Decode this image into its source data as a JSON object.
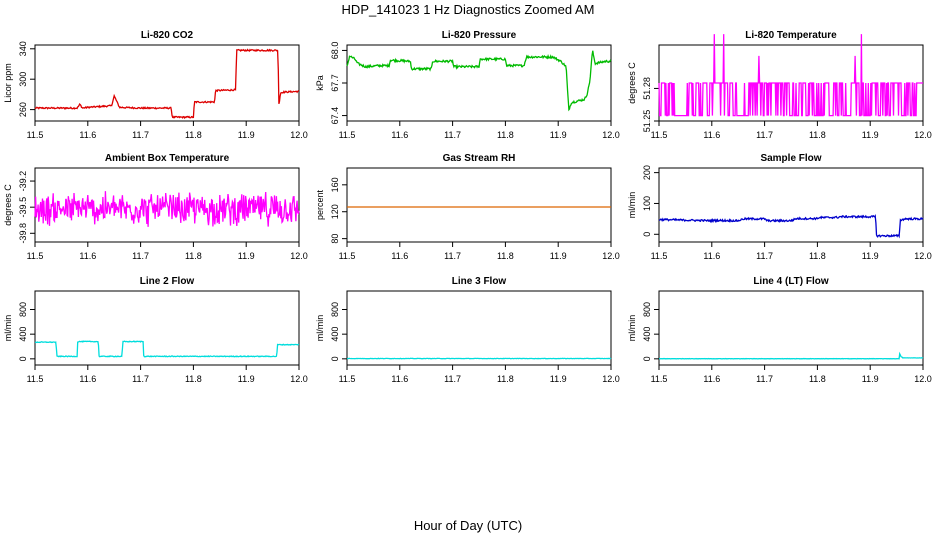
{
  "title": "HDP_141023  1 Hz Diagnostics Zoomed AM",
  "footer_xlabel": "Hour of Day (UTC)",
  "chart_data": [
    {
      "type": "line",
      "title": "Li-820 CO2",
      "ylabel": "Licor ppm",
      "xlim": [
        11.5,
        12.0
      ],
      "ylim": [
        245,
        345
      ],
      "xticks": [
        11.5,
        11.6,
        11.7,
        11.8,
        11.9,
        12.0
      ],
      "yticks": [
        260,
        300,
        340
      ],
      "ytick_labels": [
        "260",
        "300",
        "340"
      ],
      "color": "#dd0000",
      "series": [
        {
          "x": [
            11.5,
            11.58,
            11.585,
            11.59,
            11.6,
            11.645,
            11.65,
            11.66,
            11.7,
            11.758,
            11.76,
            11.8,
            11.802,
            11.84,
            11.842,
            11.88,
            11.882,
            11.96,
            11.962,
            11.965,
            11.97,
            12.0
          ],
          "y": [
            262,
            262,
            267,
            262,
            263,
            265,
            278,
            263,
            262,
            262,
            250,
            250,
            270,
            270,
            285,
            286,
            338,
            338,
            265,
            282,
            283,
            284
          ],
          "noise": 1
        }
      ]
    },
    {
      "type": "line",
      "title": "Li-820 Pressure",
      "ylabel": "kPa",
      "xlim": [
        11.5,
        12.0
      ],
      "ylim": [
        67.35,
        68.05
      ],
      "xticks": [
        11.5,
        11.6,
        11.7,
        11.8,
        11.9,
        12.0
      ],
      "yticks": [
        67.4,
        67.7,
        68.0
      ],
      "ytick_labels": [
        "67.4",
        "67.7",
        "68.0"
      ],
      "color": "#00bb00",
      "series": [
        {
          "x": [
            11.5,
            11.505,
            11.515,
            11.52,
            11.535,
            11.56,
            11.58,
            11.582,
            11.62,
            11.622,
            11.66,
            11.662,
            11.7,
            11.702,
            11.75,
            11.752,
            11.8,
            11.802,
            11.835,
            11.84,
            11.89,
            11.905,
            11.915,
            11.92,
            11.925,
            11.95,
            11.955,
            11.96,
            11.965,
            11.97,
            11.99,
            12.0
          ],
          "y": [
            67.85,
            67.95,
            67.92,
            67.88,
            67.85,
            67.86,
            67.86,
            67.91,
            67.9,
            67.83,
            67.83,
            67.9,
            67.9,
            67.85,
            67.85,
            67.92,
            67.92,
            67.86,
            67.86,
            67.94,
            67.94,
            67.9,
            67.85,
            67.45,
            67.52,
            67.55,
            67.6,
            67.72,
            68.0,
            67.88,
            67.9,
            67.9
          ],
          "noise": 0.01
        }
      ]
    },
    {
      "type": "line",
      "title": "Li-820 Temperature",
      "ylabel": "degrees C",
      "xlim": [
        11.5,
        12.0
      ],
      "ylim": [
        51.25,
        51.32
      ],
      "xticks": [
        11.5,
        11.6,
        11.7,
        11.8,
        11.9,
        12.0
      ],
      "yticks": [
        51.25,
        51.28
      ],
      "ytick_labels": [
        "51.25",
        "51.28"
      ],
      "color": "#ff00ff",
      "series": [
        {
          "levels": [
            51.255,
            51.285
          ],
          "spikes": [
            51.31,
            51.33
          ],
          "mode": "binary"
        }
      ]
    },
    {
      "type": "line",
      "title": "Ambient Box Temperature",
      "ylabel": "degrees C",
      "xlim": [
        11.5,
        12.0
      ],
      "ylim": [
        -39.9,
        -39.05
      ],
      "xticks": [
        11.5,
        11.6,
        11.7,
        11.8,
        11.9,
        12.0
      ],
      "yticks": [
        -39.8,
        -39.5,
        -39.2
      ],
      "ytick_labels": [
        "-39.8",
        "-39.5",
        "-39.2"
      ],
      "color": "#ff00ff",
      "series": [
        {
          "center": -39.52,
          "spread": 0.22,
          "mode": "noise"
        }
      ]
    },
    {
      "type": "line",
      "title": "Gas Stream RH",
      "ylabel": "percent",
      "xlim": [
        11.5,
        12.0
      ],
      "ylim": [
        75,
        185
      ],
      "xticks": [
        11.5,
        11.6,
        11.7,
        11.8,
        11.9,
        12.0
      ],
      "yticks": [
        80,
        120,
        160
      ],
      "ytick_labels": [
        "80",
        "120",
        "160"
      ],
      "color": "#dd6600",
      "series": [
        {
          "x": [
            11.5,
            12.0
          ],
          "y": [
            127,
            127
          ],
          "noise": 0
        }
      ]
    },
    {
      "type": "line",
      "title": "Sample Flow",
      "ylabel": "ml/min",
      "xlim": [
        11.5,
        12.0
      ],
      "ylim": [
        -25,
        215
      ],
      "xticks": [
        11.5,
        11.6,
        11.7,
        11.8,
        11.9,
        12.0
      ],
      "yticks": [
        0,
        100,
        200
      ],
      "ytick_labels": [
        "0",
        "100",
        "200"
      ],
      "color": "#0000cc",
      "series": [
        {
          "x": [
            11.5,
            11.6,
            11.605,
            11.65,
            11.66,
            11.7,
            11.705,
            11.75,
            11.76,
            11.8,
            11.802,
            11.84,
            11.842,
            11.91,
            11.912,
            11.955,
            11.957,
            11.965,
            12.0
          ],
          "y": [
            48,
            44,
            45,
            44,
            50,
            50,
            44,
            44,
            51,
            51,
            54,
            55,
            57,
            57,
            -5,
            -5,
            45,
            50,
            50
          ],
          "noise": 3
        }
      ]
    },
    {
      "type": "line",
      "title": "Line 2 Flow",
      "ylabel": "ml/min",
      "xlim": [
        11.5,
        12.0
      ],
      "ylim": [
        -100,
        1100
      ],
      "xticks": [
        11.5,
        11.6,
        11.7,
        11.8,
        11.9,
        12.0
      ],
      "yticks": [
        0,
        400,
        800
      ],
      "ytick_labels": [
        "0",
        "400",
        "800"
      ],
      "color": "#00dddd",
      "series": [
        {
          "x": [
            11.5,
            11.54,
            11.541,
            11.58,
            11.581,
            11.62,
            11.621,
            11.665,
            11.666,
            11.705,
            11.706,
            11.958,
            11.959,
            12.0
          ],
          "y": [
            270,
            270,
            40,
            40,
            280,
            280,
            40,
            40,
            280,
            280,
            40,
            40,
            230,
            230
          ],
          "noise": 6
        }
      ]
    },
    {
      "type": "line",
      "title": "Line 3 Flow",
      "ylabel": "ml/min",
      "xlim": [
        11.5,
        12.0
      ],
      "ylim": [
        -100,
        1100
      ],
      "xticks": [
        11.5,
        11.6,
        11.7,
        11.8,
        11.9,
        12.0
      ],
      "yticks": [
        0,
        400,
        800
      ],
      "ytick_labels": [
        "0",
        "400",
        "800"
      ],
      "color": "#00dddd",
      "series": [
        {
          "x": [
            11.5,
            12.0
          ],
          "y": [
            5,
            5
          ],
          "noise": 3
        }
      ]
    },
    {
      "type": "line",
      "title": "Line 4 (LT) Flow",
      "ylabel": "ml/min",
      "xlim": [
        11.5,
        12.0
      ],
      "ylim": [
        -100,
        1100
      ],
      "xticks": [
        11.5,
        11.6,
        11.7,
        11.8,
        11.9,
        12.0
      ],
      "yticks": [
        0,
        400,
        800
      ],
      "ytick_labels": [
        "0",
        "400",
        "800"
      ],
      "color": "#00dddd",
      "series": [
        {
          "x": [
            11.5,
            11.955,
            11.956,
            11.958,
            11.962,
            12.0
          ],
          "y": [
            2,
            2,
            85,
            40,
            15,
            15
          ],
          "noise": 2
        }
      ]
    }
  ]
}
